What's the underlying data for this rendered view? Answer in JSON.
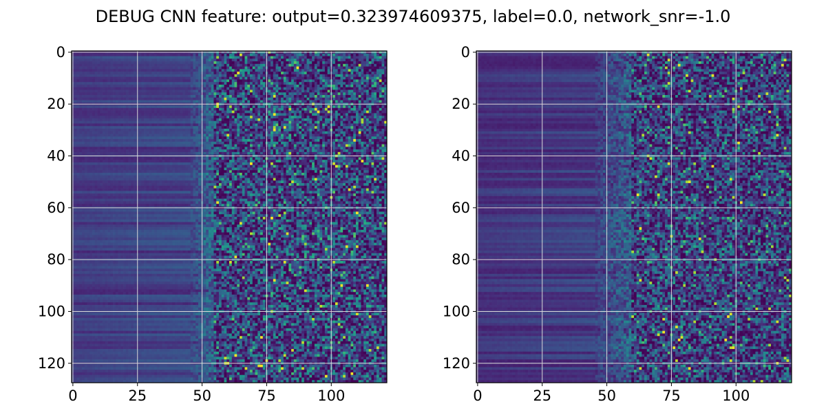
{
  "figure": {
    "title": "DEBUG CNN feature: output=0.323974609375, label=0.0, network_snr=-1.0"
  },
  "chart_data": [
    {
      "type": "heatmap",
      "title": "",
      "xlabel": "",
      "ylabel": "",
      "n_cols": 122,
      "n_rows": 128,
      "xlim": [
        -0.5,
        121.5
      ],
      "ylim": [
        127.5,
        -0.5
      ],
      "y_inverted": true,
      "grid": true,
      "colormap": "viridis",
      "xticks": [
        0,
        25,
        50,
        75,
        100
      ],
      "yticks": [
        0,
        20,
        40,
        60,
        80,
        100,
        120
      ],
      "xtick_labels": [
        "0",
        "25",
        "50",
        "75",
        "100"
      ],
      "ytick_labels": [
        "0",
        "20",
        "40",
        "60",
        "80",
        "100",
        "120"
      ],
      "profile": {
        "low_x_range": [
          0,
          45
        ],
        "noisy_x_range": [
          55,
          121
        ],
        "low_level": 0.1,
        "high_level": 0.55
      },
      "seed": 7
    },
    {
      "type": "heatmap",
      "title": "",
      "xlabel": "",
      "ylabel": "",
      "n_cols": 122,
      "n_rows": 128,
      "xlim": [
        -0.5,
        121.5
      ],
      "ylim": [
        127.5,
        -0.5
      ],
      "y_inverted": true,
      "grid": true,
      "colormap": "viridis",
      "xticks": [
        0,
        25,
        50,
        75,
        100
      ],
      "yticks": [
        0,
        20,
        40,
        60,
        80,
        100,
        120
      ],
      "xtick_labels": [
        "0",
        "25",
        "50",
        "75",
        "100"
      ],
      "ytick_labels": [
        "0",
        "20",
        "40",
        "60",
        "80",
        "100",
        "120"
      ],
      "profile": {
        "low_x_range": [
          0,
          45
        ],
        "noisy_x_range": [
          60,
          121
        ],
        "low_level": 0.08,
        "high_level": 0.5
      },
      "seed": 13
    }
  ],
  "colors": {
    "grid": "#d9d9d9",
    "axis": "#000000",
    "background": "#ffffff"
  }
}
